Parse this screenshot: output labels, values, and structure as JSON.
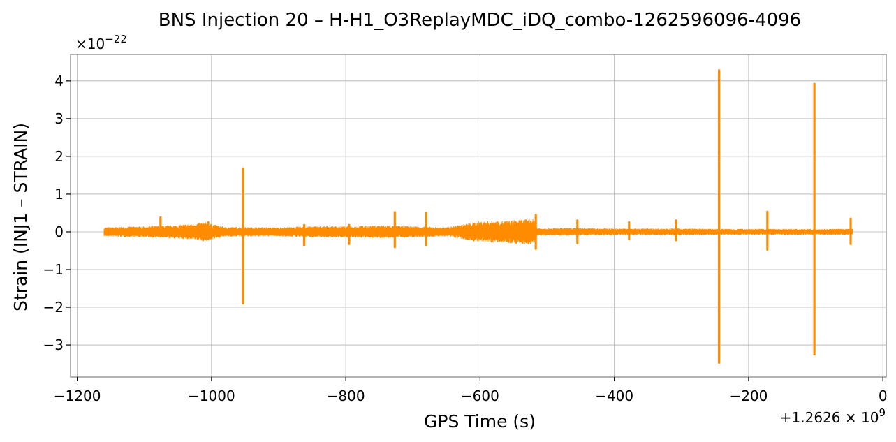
{
  "chart_data": {
    "type": "line",
    "title": "BNS Injection 20 – H-H1_O3ReplayMDC_iDQ_combo-1262596096-4096",
    "xlabel": "GPS Time (s)",
    "ylabel": "Strain (INJ1 – STRAIN)",
    "x_offset_label": "+1.2626 × 10^9",
    "y_scale_label": "×10^−22",
    "xlim": [
      -1210,
      5
    ],
    "ylim": [
      -3.85,
      4.7
    ],
    "xticks": [
      -1200,
      -1000,
      -800,
      -600,
      -400,
      -200,
      0
    ],
    "xtick_labels": [
      "−1200",
      "−1000",
      "−800",
      "−600",
      "−400",
      "−200",
      "0"
    ],
    "yticks": [
      -3,
      -2,
      -1,
      0,
      1,
      2,
      3,
      4
    ],
    "ytick_labels": [
      "−3",
      "−2",
      "−1",
      "0",
      "1",
      "2",
      "3",
      "4"
    ],
    "grid": true,
    "series_color": "#ff8c00",
    "series": [
      {
        "x_range": [
          -1160,
          -45
        ],
        "baseline_envelope": [
          [
            -1160,
            0.12
          ],
          [
            -1100,
            0.15
          ],
          [
            -1050,
            0.18
          ],
          [
            -1010,
            0.25
          ],
          [
            -980,
            0.13
          ],
          [
            -900,
            0.12
          ],
          [
            -850,
            0.15
          ],
          [
            -800,
            0.15
          ],
          [
            -750,
            0.17
          ],
          [
            -700,
            0.15
          ],
          [
            -650,
            0.12
          ],
          [
            -620,
            0.22
          ],
          [
            -600,
            0.28
          ],
          [
            -560,
            0.3
          ],
          [
            -520,
            0.35
          ],
          [
            -515,
            0.1
          ],
          [
            -450,
            0.1
          ],
          [
            -400,
            0.09
          ],
          [
            -300,
            0.09
          ],
          [
            -250,
            0.08
          ],
          [
            -200,
            0.08
          ],
          [
            -100,
            0.08
          ],
          [
            -45,
            0.08
          ]
        ],
        "spikes": [
          {
            "x": -1076,
            "max": 0.38,
            "min": -0.12
          },
          {
            "x": -1005,
            "max": 0.25,
            "min": -0.2
          },
          {
            "x": -953,
            "max": 1.68,
            "min": -1.9
          },
          {
            "x": -862,
            "max": 0.18,
            "min": -0.35
          },
          {
            "x": -795,
            "max": 0.18,
            "min": -0.32
          },
          {
            "x": -727,
            "max": 0.52,
            "min": -0.4
          },
          {
            "x": -680,
            "max": 0.5,
            "min": -0.35
          },
          {
            "x": -517,
            "max": 0.45,
            "min": -0.45
          },
          {
            "x": -455,
            "max": 0.3,
            "min": -0.3
          },
          {
            "x": -378,
            "max": 0.25,
            "min": -0.2
          },
          {
            "x": -308,
            "max": 0.3,
            "min": -0.22
          },
          {
            "x": -244,
            "max": 4.28,
            "min": -3.47
          },
          {
            "x": -172,
            "max": 0.53,
            "min": -0.47
          },
          {
            "x": -102,
            "max": 3.92,
            "min": -3.25
          },
          {
            "x": -48,
            "max": 0.35,
            "min": -0.32
          }
        ]
      }
    ]
  }
}
